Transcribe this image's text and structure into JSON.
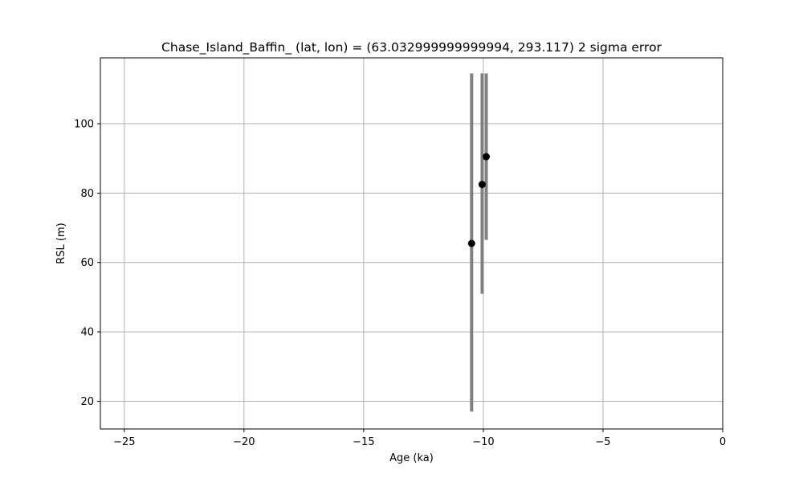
{
  "chart_data": {
    "type": "scatter",
    "title": "Chase_Island_Baffin_ (lat, lon) = (63.032999999999994, 293.117)  2 sigma error",
    "xlabel": "Age (ka)",
    "ylabel": "RSL (m)",
    "xlim": [
      -26,
      0
    ],
    "ylim": [
      12,
      119
    ],
    "xticks": [
      -25,
      -20,
      -15,
      -10,
      -5,
      0
    ],
    "xtick_labels": [
      "−25",
      "−20",
      "−15",
      "−10",
      "−5",
      "0"
    ],
    "yticks": [
      20,
      40,
      60,
      80,
      100
    ],
    "ytick_labels": [
      "20",
      "40",
      "60",
      "80",
      "100"
    ],
    "grid": true,
    "point_color": "#000000",
    "errorbar_color": "#808080",
    "points": [
      {
        "x": -10.49,
        "y": 65.5,
        "ylow": 17.0,
        "yhigh": 114.5
      },
      {
        "x": -10.05,
        "y": 82.5,
        "ylow": 51.0,
        "yhigh": 114.5
      },
      {
        "x": -9.88,
        "y": 90.5,
        "ylow": 66.5,
        "yhigh": 114.5
      }
    ]
  }
}
